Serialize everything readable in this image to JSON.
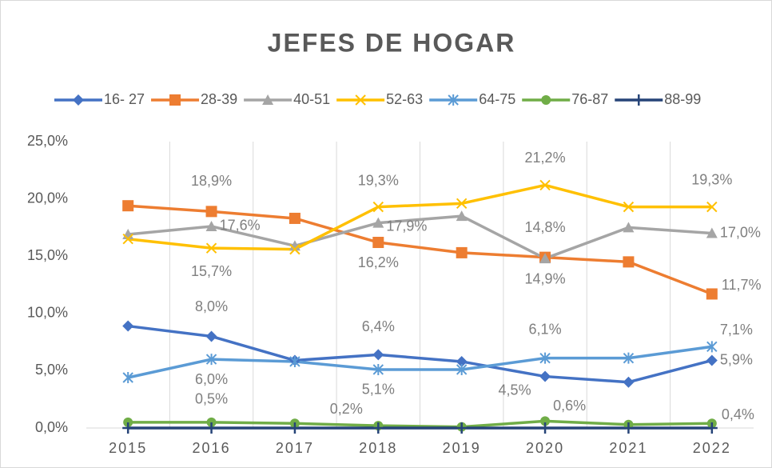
{
  "chart_data": {
    "type": "line",
    "title": "JEFES DE HOGAR",
    "categories": [
      "2015",
      "2016",
      "2017",
      "2018",
      "2019",
      "2020",
      "2021",
      "2022"
    ],
    "ylim": [
      0,
      25
    ],
    "yticks": [
      {
        "value": 0,
        "label": "0,0%"
      },
      {
        "value": 5,
        "label": "5,0%"
      },
      {
        "value": 10,
        "label": "10,0%"
      },
      {
        "value": 15,
        "label": "15,0%"
      },
      {
        "value": 20,
        "label": "20,0%"
      },
      {
        "value": 25,
        "label": "25,0%"
      }
    ],
    "legend": "top",
    "series": [
      {
        "name": "16- 27",
        "color": "#4472c4",
        "marker": "diamond",
        "values": [
          8.9,
          8.0,
          5.9,
          6.4,
          5.8,
          4.5,
          4.0,
          5.9
        ],
        "value_labels": [
          null,
          "8,0%",
          null,
          "6,4%",
          null,
          "4,5%",
          null,
          "5,9%"
        ]
      },
      {
        "name": "28-39",
        "color": "#ed7d31",
        "marker": "square",
        "values": [
          19.4,
          18.9,
          18.3,
          16.2,
          15.3,
          14.9,
          14.5,
          11.7
        ],
        "value_labels": [
          null,
          "18,9%",
          null,
          "16,2%",
          null,
          "14,9%",
          null,
          "11,7%"
        ]
      },
      {
        "name": "40-51",
        "color": "#a5a5a5",
        "marker": "triangle",
        "values": [
          16.9,
          17.6,
          15.9,
          17.9,
          18.5,
          14.8,
          17.5,
          17.0
        ],
        "value_labels": [
          null,
          "17,6%",
          null,
          "17,9%",
          null,
          "14,8%",
          null,
          "17,0%"
        ]
      },
      {
        "name": "52-63",
        "color": "#ffc000",
        "marker": "x",
        "values": [
          16.5,
          15.7,
          15.6,
          19.3,
          19.6,
          21.2,
          19.3,
          19.3
        ],
        "value_labels": [
          null,
          "15,7%",
          null,
          "19,3%",
          null,
          "21,2%",
          null,
          "19,3%"
        ]
      },
      {
        "name": "64-75",
        "color": "#5b9bd5",
        "marker": "star",
        "values": [
          4.4,
          6.0,
          5.8,
          5.1,
          5.1,
          6.1,
          6.1,
          7.1
        ],
        "value_labels": [
          null,
          "6,0%",
          null,
          "5,1%",
          null,
          "6,1%",
          null,
          "7,1%"
        ]
      },
      {
        "name": "76-87",
        "color": "#70ad47",
        "marker": "circle",
        "values": [
          0.5,
          0.5,
          0.4,
          0.2,
          0.1,
          0.6,
          0.3,
          0.4
        ],
        "value_labels": [
          null,
          "0,5%",
          null,
          "0,2%",
          null,
          "0,6%",
          null,
          "0,4%"
        ]
      },
      {
        "name": "88-99",
        "color": "#264478",
        "marker": "plus",
        "values": [
          0.0,
          0.0,
          0.0,
          0.0,
          0.0,
          0.0,
          0.0,
          0.0
        ]
      }
    ]
  }
}
